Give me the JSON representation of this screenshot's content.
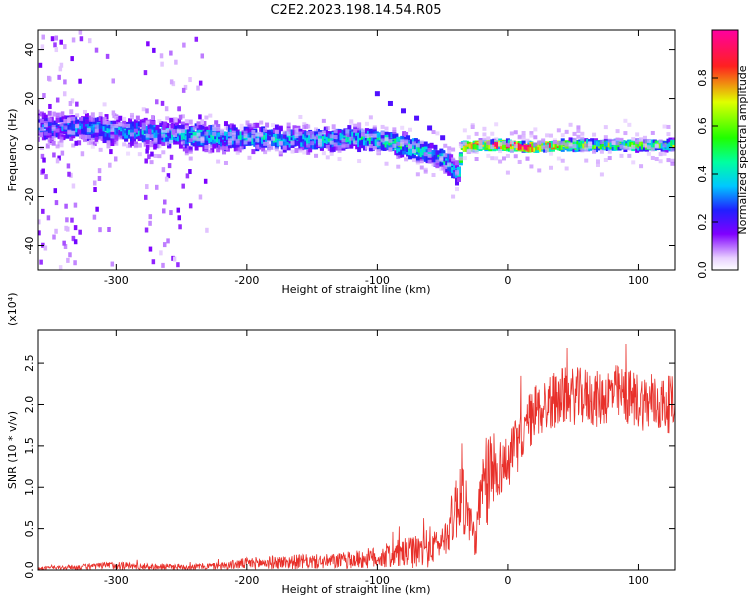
{
  "title": "C2E2.2023.198.14.54.R05",
  "chart_data": [
    {
      "type": "heatmap",
      "xlabel": "Height of straight line (km)",
      "ylabel": "Frequency (Hz)",
      "xlim": [
        -360,
        128
      ],
      "ylim": [
        -50,
        48
      ],
      "xticks": [
        -300,
        -200,
        -100,
        0,
        100
      ],
      "yticks": [
        -40,
        -20,
        0,
        20,
        40
      ],
      "colorbar": {
        "label": "Normalized spectral amplitude",
        "range": [
          0.0,
          1.0
        ],
        "ticks": [
          0.0,
          0.2,
          0.4,
          0.6,
          0.8
        ],
        "colormap": "rainbow (white-violet-blue-cyan-green-yellow-red-magenta)"
      },
      "ridge": {
        "x": [
          -350,
          -330,
          -300,
          -250,
          -200,
          -150,
          -120,
          -100,
          -80,
          -60,
          -45,
          -38,
          -35,
          -20,
          0,
          20,
          40,
          60,
          80,
          100,
          120
        ],
        "center_hz": [
          8,
          8,
          7,
          5,
          4,
          3,
          4,
          3,
          1,
          -2,
          -6,
          -12,
          0,
          1,
          1,
          0,
          1,
          1,
          1,
          1,
          1
        ],
        "half_width_hz": [
          7,
          6,
          6,
          6,
          6,
          5,
          5,
          5,
          5,
          5,
          5,
          5,
          2,
          2,
          2,
          2,
          2,
          2,
          2,
          2,
          2
        ],
        "peak_amplitude": [
          0.25,
          0.3,
          0.3,
          0.35,
          0.35,
          0.35,
          0.38,
          0.4,
          0.45,
          0.4,
          0.35,
          0.3,
          0.7,
          0.8,
          0.9,
          0.9,
          0.7,
          0.6,
          0.55,
          0.6,
          0.55
        ]
      },
      "branch": {
        "x": [
          -100,
          -90,
          -80,
          -70,
          -60,
          -50
        ],
        "y_hz": [
          22,
          18,
          15,
          12,
          8,
          4
        ]
      }
    },
    {
      "type": "line",
      "xlabel": "Height of straight line (km)",
      "ylabel": "SNR (10 * v/v)",
      "y_multiplier": "(x10⁴)",
      "xlim": [
        -360,
        128
      ],
      "ylim": [
        0,
        2.9
      ],
      "xticks": [
        -300,
        -200,
        -100,
        0,
        100
      ],
      "yticks": [
        0.0,
        0.5,
        1.0,
        1.5,
        2.0,
        2.5
      ],
      "color": "#e8302a",
      "series": [
        {
          "x": [
            -360,
            -340,
            -320,
            -300,
            -280,
            -260,
            -240,
            -220,
            -200,
            -180,
            -160,
            -140,
            -120,
            -100,
            -90,
            -80,
            -70,
            -60,
            -50,
            -45,
            -40,
            -35,
            -30,
            -25,
            -20,
            -15,
            -10,
            0,
            10,
            20,
            30,
            40,
            50,
            60,
            70,
            80,
            90,
            100,
            110,
            128
          ],
          "values": [
            0.02,
            0.03,
            0.04,
            0.06,
            0.04,
            0.04,
            0.04,
            0.05,
            0.08,
            0.09,
            0.1,
            0.1,
            0.12,
            0.15,
            0.18,
            0.2,
            0.22,
            0.28,
            0.35,
            0.5,
            0.75,
            1.0,
            0.6,
            0.35,
            0.9,
            1.1,
            1.2,
            1.3,
            1.6,
            1.9,
            2.0,
            2.1,
            2.1,
            2.1,
            2.05,
            2.15,
            2.1,
            2.05,
            2.0,
            2.0
          ]
        }
      ]
    }
  ]
}
